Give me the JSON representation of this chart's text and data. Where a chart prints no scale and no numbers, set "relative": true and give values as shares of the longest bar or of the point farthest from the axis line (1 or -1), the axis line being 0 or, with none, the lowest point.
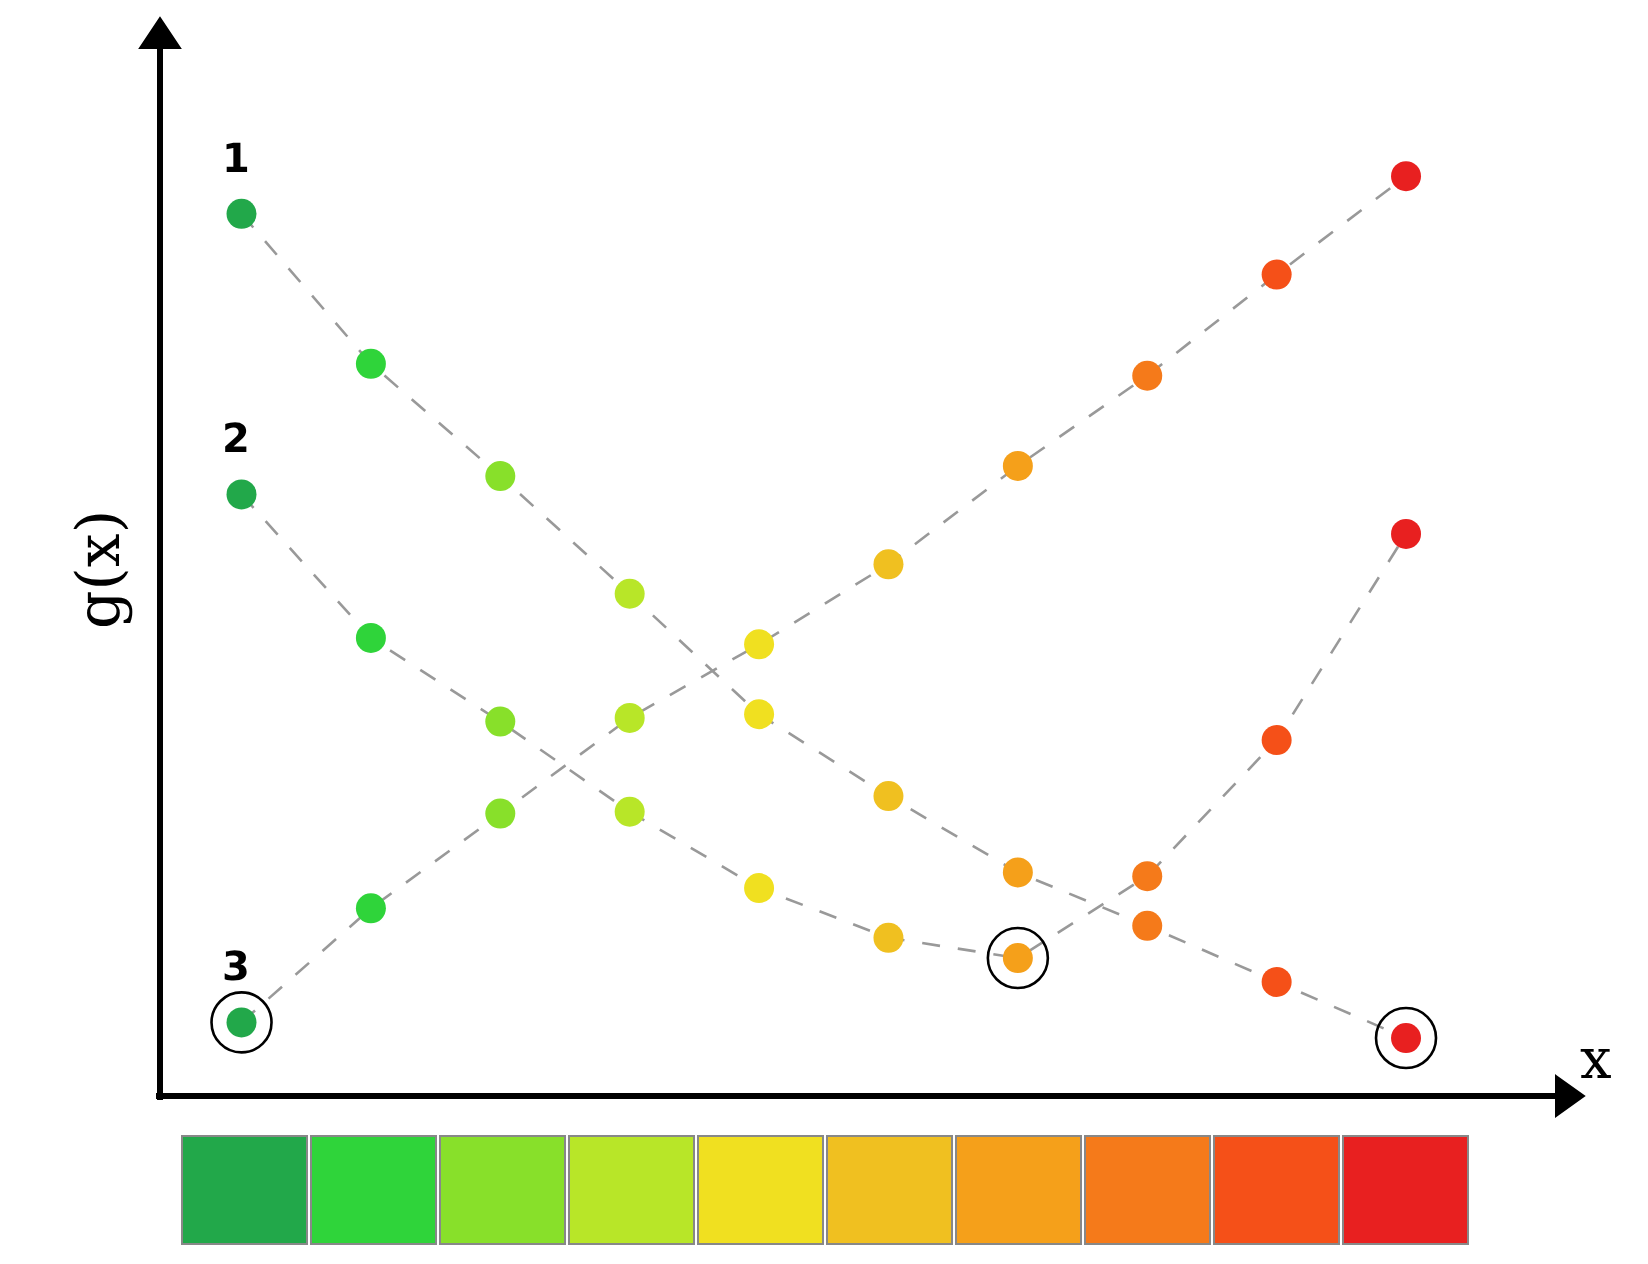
{
  "chart_data": [
    {
      "type": "line",
      "xlabel": "x",
      "ylabel": "g(x)",
      "relative": true,
      "categories": [
        null,
        null,
        null,
        null,
        null,
        null,
        null,
        null,
        null,
        null
      ],
      "line_style": "dashed",
      "marker": "circle",
      "annotations": [
        "1",
        "2",
        "3"
      ],
      "series": [
        {
          "colors": [
            "#22a84a",
            "#2fd43a",
            "#88e02a",
            "#b8e628",
            "#f0e020",
            "#f0c020",
            "#f5a01a",
            "#f57a1a",
            "#f55018",
            "#e82020"
          ],
          "color": "#999999",
          "values": [
            0.959,
            0.796,
            0.674,
            0.546,
            0.415,
            0.326,
            0.243,
            0.185,
            0.124,
            0.063
          ]
        },
        {
          "colors": [
            "#22a84a",
            "#2fd43a",
            "#88e02a",
            "#b8e628",
            "#f0e020",
            "#f0c020",
            "#f5a01a",
            "#f57a1a",
            "#f55018",
            "#e82020"
          ],
          "color": "#999999",
          "values": [
            0.654,
            0.498,
            0.407,
            0.309,
            0.226,
            0.172,
            0.15,
            0.239,
            0.387,
            0.611
          ]
        },
        {
          "colors": [
            "#22a84a",
            "#2fd43a",
            "#88e02a",
            "#b8e628",
            "#f0e020",
            "#f0c020",
            "#f5a01a",
            "#f57a1a",
            "#f55018",
            "#e82020"
          ],
          "color": "#999999",
          "values": [
            0.08,
            0.204,
            0.307,
            0.411,
            0.491,
            0.578,
            0.685,
            0.783,
            0.893,
            1
          ]
        }
      ]
    }
  ]
}
